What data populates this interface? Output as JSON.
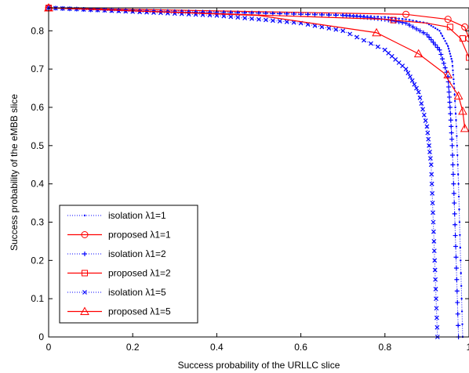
{
  "chart_data": {
    "type": "line",
    "title": "",
    "xlabel": "Success probability of the URLLC slice",
    "ylabel": "Success probability of the eMBB slice",
    "xlim": [
      0,
      1
    ],
    "ylim": [
      0,
      0.86
    ],
    "xticks": [
      "0",
      "0.2",
      "0.4",
      "0.6",
      "0.8",
      "1"
    ],
    "yticks": [
      "0",
      "0.1",
      "0.2",
      "0.3",
      "0.4",
      "0.5",
      "0.6",
      "0.7",
      "0.8"
    ],
    "grid": false,
    "legend_position": "bottom-left",
    "colors": {
      "isolation": "#0000ff",
      "proposed": "#ff0000"
    },
    "series": [
      {
        "name": "isolation λ1=1",
        "style": "dotted",
        "marker": "point",
        "x": [
          0,
          0.1,
          0.2,
          0.3,
          0.4,
          0.5,
          0.6,
          0.7,
          0.8,
          0.85,
          0.9,
          0.93,
          0.95,
          0.96,
          0.965,
          0.97,
          0.975,
          0.98,
          0.985
        ],
        "y": [
          0.86,
          0.857,
          0.855,
          0.853,
          0.851,
          0.848,
          0.846,
          0.842,
          0.836,
          0.83,
          0.82,
          0.8,
          0.76,
          0.72,
          0.65,
          0.55,
          0.4,
          0.2,
          0.0
        ]
      },
      {
        "name": "proposed λ1=1",
        "style": "solid",
        "marker": "circle",
        "x": [
          0,
          0.85,
          0.95,
          0.99,
          1.0
        ],
        "y": [
          0.86,
          0.843,
          0.83,
          0.81,
          0.78
        ],
        "markers_x": [
          0,
          0.85,
          0.95,
          0.99,
          1.0
        ],
        "markers_y": [
          0.86,
          0.843,
          0.83,
          0.81,
          0.78
        ]
      },
      {
        "name": "isolation λ1=2",
        "style": "dotted",
        "marker": "plus",
        "x": [
          0,
          0.1,
          0.2,
          0.3,
          0.4,
          0.5,
          0.6,
          0.7,
          0.75,
          0.8,
          0.85,
          0.9,
          0.93,
          0.95,
          0.955,
          0.96,
          0.965,
          0.97,
          0.975
        ],
        "y": [
          0.86,
          0.855,
          0.852,
          0.85,
          0.848,
          0.846,
          0.843,
          0.84,
          0.836,
          0.83,
          0.82,
          0.79,
          0.75,
          0.68,
          0.6,
          0.5,
          0.35,
          0.18,
          0.0
        ]
      },
      {
        "name": "proposed λ1=2",
        "style": "solid",
        "marker": "square",
        "x": [
          0,
          0.8,
          0.9,
          0.95,
          0.98,
          1.0
        ],
        "y": [
          0.86,
          0.83,
          0.82,
          0.81,
          0.78,
          0.73
        ],
        "markers_x": [
          0,
          0.82,
          0.955,
          0.985,
          1.0
        ],
        "markers_y": [
          0.86,
          0.828,
          0.81,
          0.78,
          0.73
        ]
      },
      {
        "name": "isolation λ1=5",
        "style": "dotted",
        "marker": "x",
        "x": [
          0,
          0.1,
          0.2,
          0.3,
          0.4,
          0.5,
          0.6,
          0.7,
          0.8,
          0.85,
          0.88,
          0.9,
          0.91,
          0.915,
          0.92,
          0.925
        ],
        "y": [
          0.86,
          0.855,
          0.85,
          0.845,
          0.84,
          0.83,
          0.82,
          0.8,
          0.75,
          0.7,
          0.64,
          0.55,
          0.45,
          0.3,
          0.15,
          0.0
        ]
      },
      {
        "name": "proposed λ1=5",
        "style": "solid",
        "marker": "triangle",
        "x": [
          0,
          0.5,
          0.78,
          0.88,
          0.94,
          0.975,
          0.985,
          0.99
        ],
        "y": [
          0.86,
          0.84,
          0.795,
          0.74,
          0.69,
          0.63,
          0.59,
          0.545
        ],
        "markers_x": [
          0,
          0.78,
          0.88,
          0.95,
          0.975,
          0.985,
          0.99
        ],
        "markers_y": [
          0.86,
          0.795,
          0.74,
          0.685,
          0.63,
          0.59,
          0.545
        ]
      }
    ]
  }
}
